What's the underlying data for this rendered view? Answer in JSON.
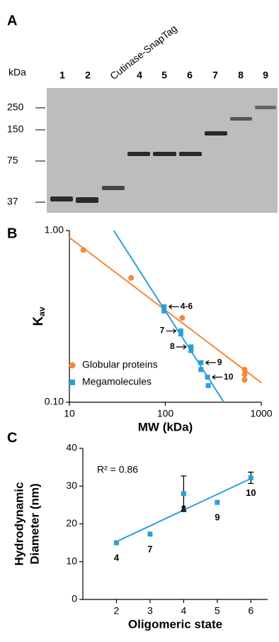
{
  "gel": {
    "panel_label": "A",
    "unit_label": "kDa",
    "lanes": [
      "1",
      "2",
      "Cutinase-SnapTag",
      "4",
      "5",
      "6",
      "7",
      "8",
      "9"
    ],
    "markers": [
      "250",
      "150",
      "75",
      "37"
    ]
  },
  "chart_data": [
    {
      "type": "scatter",
      "panel_label": "B",
      "x_label": "MW (kDa)",
      "y_label": {
        "text": "K",
        "subscript": "av"
      },
      "log_x": true,
      "log_y": true,
      "xlim": [
        10,
        1000
      ],
      "xticks": [
        10,
        100,
        1000
      ],
      "ylim": [
        0.1,
        1
      ],
      "yticks": [
        {
          "value": 0.1,
          "label": "0.10"
        },
        {
          "value": 1,
          "label": "1.00"
        }
      ],
      "legend": "lower left",
      "series": [
        {
          "name": "Globular proteins",
          "color": "#f5873a",
          "marker": "circle",
          "x": [
            14,
            44,
            150,
            670,
            670,
            670
          ],
          "values": [
            0.77,
            0.53,
            0.31,
            0.155,
            0.145,
            0.135
          ],
          "fit": {
            "x": [
              10,
              1000
            ],
            "y": [
              0.91,
              0.13
            ]
          }
        },
        {
          "name": "Megamolecules",
          "color": "#2b9fd9",
          "marker": "square",
          "x": [
            97,
            97,
            145,
            145,
            185,
            185,
            235,
            235,
            275,
            280
          ],
          "values": [
            0.36,
            0.34,
            0.26,
            0.25,
            0.21,
            0.2,
            0.17,
            0.155,
            0.14,
            0.125
          ],
          "point_labels": [
            "4-6",
            null,
            "7",
            null,
            "8",
            null,
            "9",
            null,
            "10",
            null
          ],
          "fit": {
            "x": [
              29,
              407
            ],
            "y": [
              1,
              0.1
            ]
          }
        }
      ]
    },
    {
      "type": "scatter",
      "panel_label": "C",
      "x_label": "Oligomeric state",
      "y_label": [
        "Hydrodynamic",
        "Diameter (nm)"
      ],
      "annotation": "R² = 0.86",
      "xlim": [
        1,
        6.5
      ],
      "xticks": [
        2,
        3,
        4,
        5,
        6
      ],
      "ylim": [
        0,
        40
      ],
      "yticks": [
        0,
        10,
        20,
        30,
        40
      ],
      "series": [
        {
          "name": null,
          "color": "#2b9fd9",
          "marker": "square",
          "x": [
            2,
            3,
            4,
            5,
            6
          ],
          "values": [
            15,
            17.3,
            28,
            25.7,
            32.2
          ],
          "errors": [
            null,
            null,
            4.7,
            null,
            1.5
          ],
          "point_labels": [
            "4",
            "7",
            "8",
            "9",
            "10"
          ],
          "fit": {
            "x": [
              2,
              6
            ],
            "y": [
              15.3,
              32
            ]
          }
        }
      ]
    }
  ]
}
